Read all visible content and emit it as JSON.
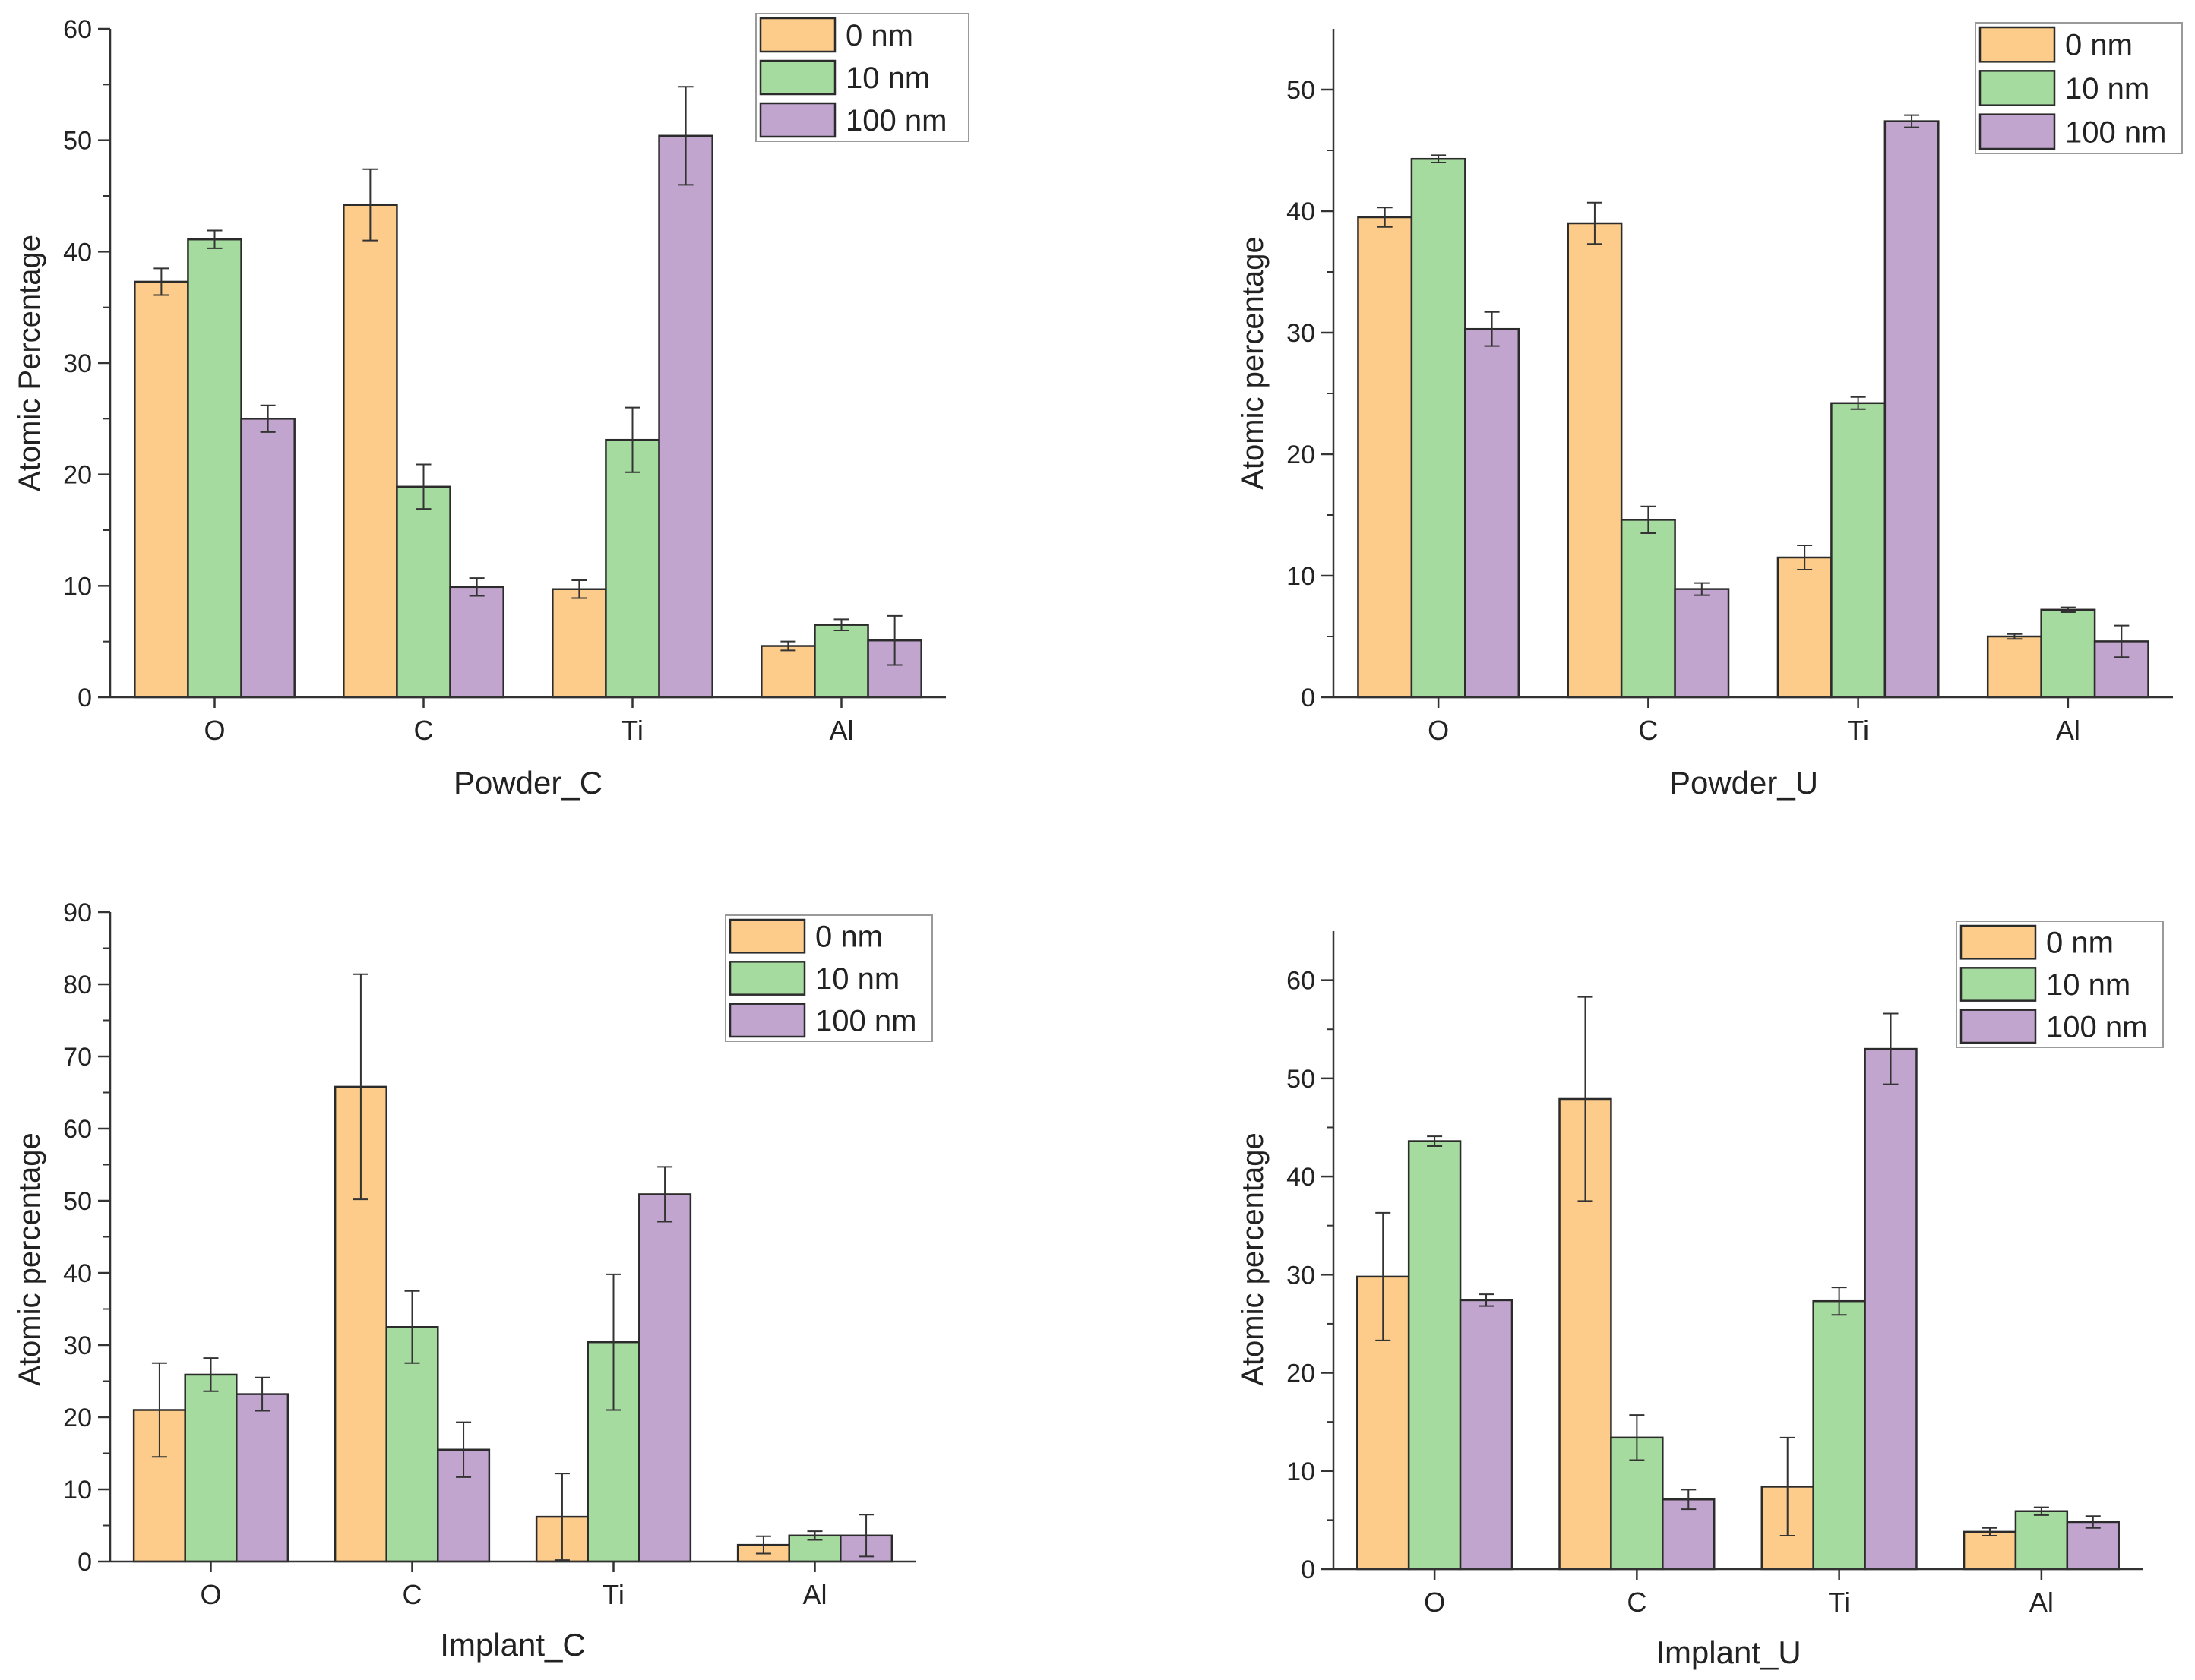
{
  "colors": {
    "0 nm": "#fdcc8a",
    "10 nm": "#a6dba0",
    "100 nm": "#c2a5cf",
    "axis": "#333333",
    "error": "#333333"
  },
  "chart_data": [
    {
      "type": "bar",
      "title": "",
      "xlabel": "Powder_C",
      "ylabel": "Atomic Percentage",
      "categories": [
        "O",
        "C",
        "Ti",
        "Al"
      ],
      "ylim": [
        0,
        60
      ],
      "yticks": [
        "0",
        "10",
        "20",
        "30",
        "40",
        "50",
        "60"
      ],
      "legend_position": "top-right",
      "series": [
        {
          "name": "0 nm",
          "values": [
            37.3,
            44.2,
            9.7,
            4.6
          ],
          "errors": [
            1.2,
            3.2,
            0.8,
            0.4
          ]
        },
        {
          "name": "10 nm",
          "values": [
            41.1,
            18.9,
            23.1,
            6.5
          ],
          "errors": [
            0.8,
            2.0,
            2.9,
            0.5
          ]
        },
        {
          "name": "100 nm",
          "values": [
            25.0,
            9.9,
            50.4,
            5.1
          ],
          "errors": [
            1.2,
            0.8,
            4.4,
            2.2
          ]
        }
      ]
    },
    {
      "type": "bar",
      "title": "",
      "xlabel": "Powder_U",
      "ylabel": "Atomic percentage",
      "categories": [
        "O",
        "C",
        "Ti",
        "Al"
      ],
      "ylim": [
        0,
        55
      ],
      "yticks": [
        "0",
        "10",
        "20",
        "30",
        "40",
        "50"
      ],
      "legend_position": "top-right",
      "series": [
        {
          "name": "0 nm",
          "values": [
            39.5,
            39.0,
            11.5,
            5.0
          ],
          "errors": [
            0.8,
            1.7,
            1.0,
            0.2
          ]
        },
        {
          "name": "10 nm",
          "values": [
            44.3,
            14.6,
            24.2,
            7.2
          ],
          "errors": [
            0.3,
            1.1,
            0.5,
            0.2
          ]
        },
        {
          "name": "100 nm",
          "values": [
            30.3,
            8.9,
            47.4,
            4.6
          ],
          "errors": [
            1.4,
            0.5,
            0.5,
            1.3
          ]
        }
      ]
    },
    {
      "type": "bar",
      "title": "",
      "xlabel": "Implant_C",
      "ylabel": "Atomic percentage",
      "categories": [
        "O",
        "C",
        "Ti",
        "Al"
      ],
      "ylim": [
        0,
        90
      ],
      "yticks": [
        "0",
        "10",
        "20",
        "30",
        "40",
        "50",
        "60",
        "70",
        "80",
        "90"
      ],
      "legend_position": "top-right",
      "series": [
        {
          "name": "0 nm",
          "values": [
            21.0,
            65.8,
            6.2,
            2.3
          ],
          "errors": [
            6.5,
            15.6,
            6.0,
            1.2
          ]
        },
        {
          "name": "10 nm",
          "values": [
            25.9,
            32.5,
            30.4,
            3.6
          ],
          "errors": [
            2.3,
            5.0,
            9.4,
            0.6
          ]
        },
        {
          "name": "100 nm",
          "values": [
            23.2,
            15.5,
            50.9,
            3.6
          ],
          "errors": [
            2.3,
            3.8,
            3.8,
            2.9
          ]
        }
      ]
    },
    {
      "type": "bar",
      "title": "",
      "xlabel": "Implant_U",
      "ylabel": "Atomic percentage",
      "categories": [
        "O",
        "C",
        "Ti",
        "Al"
      ],
      "ylim": [
        0,
        65
      ],
      "yticks": [
        "0",
        "10",
        "20",
        "30",
        "40",
        "50",
        "60"
      ],
      "legend_position": "top-right",
      "series": [
        {
          "name": "0 nm",
          "values": [
            29.8,
            47.9,
            8.4,
            3.8
          ],
          "errors": [
            6.5,
            10.4,
            5.0,
            0.4
          ]
        },
        {
          "name": "10 nm",
          "values": [
            43.6,
            13.4,
            27.3,
            5.9
          ],
          "errors": [
            0.5,
            2.3,
            1.4,
            0.4
          ]
        },
        {
          "name": "100 nm",
          "values": [
            27.4,
            7.1,
            53.0,
            4.8
          ],
          "errors": [
            0.6,
            1.0,
            3.6,
            0.6
          ]
        }
      ]
    }
  ]
}
